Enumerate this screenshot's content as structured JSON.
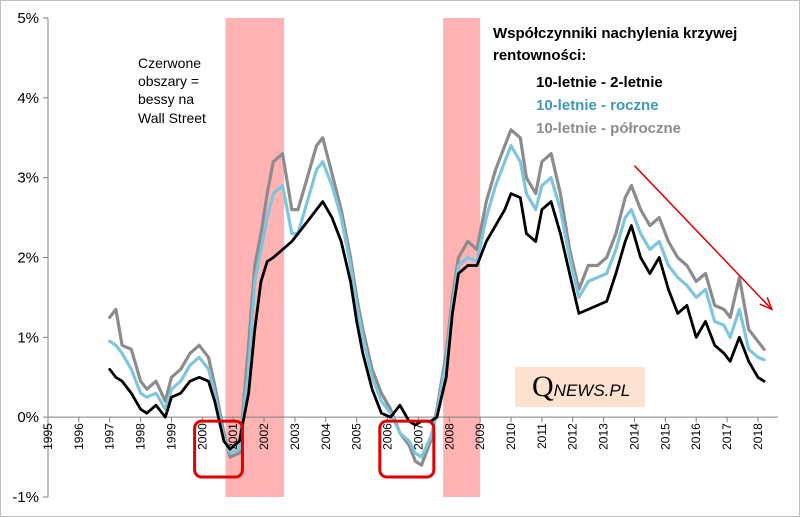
{
  "chart_data": {
    "type": "line",
    "title": "Współczynniki nachylenia krzywej rentowności:",
    "title_lines": [
      "Współczynniki nachylenia krzywej",
      "rentowności:"
    ],
    "xlabel": "",
    "ylabel": "",
    "xlim": [
      1995,
      2018.65
    ],
    "ylim": [
      -1,
      5
    ],
    "yticks": [
      -1,
      0,
      1,
      2,
      3,
      4,
      5
    ],
    "ytick_labels": [
      "-1%",
      "0%",
      "1%",
      "2%",
      "3%",
      "4%",
      "5%"
    ],
    "xticks": [
      1995,
      1996,
      1997,
      1998,
      1999,
      2000,
      2001,
      2002,
      2003,
      2004,
      2005,
      2006,
      2007,
      2008,
      2009,
      2010,
      2011,
      2012,
      2013,
      2014,
      2015,
      2016,
      2017,
      2018
    ],
    "xtick_labels": [
      "1995",
      "1996",
      "1997",
      "1998",
      "1999",
      "2000",
      "2001",
      "2002",
      "2003",
      "2004",
      "2005",
      "2006",
      "2007",
      "2008",
      "2009",
      "2010",
      "2011",
      "2012",
      "2013",
      "2014",
      "2015",
      "2016",
      "2017",
      "2018"
    ],
    "grid": false,
    "legend_position": "top-right",
    "series": [
      {
        "name": "10-letnie - półroczne",
        "color": "#8c8c8c",
        "x": [
          1997.0,
          1997.2,
          1997.4,
          1997.7,
          1998.0,
          1998.2,
          1998.5,
          1998.8,
          1999.0,
          1999.3,
          1999.6,
          1999.9,
          2000.2,
          2000.4,
          2000.7,
          2000.9,
          2001.2,
          2001.5,
          2001.7,
          2001.9,
          2002.1,
          2002.3,
          2002.6,
          2002.9,
          2003.1,
          2003.4,
          2003.7,
          2003.9,
          2004.2,
          2004.5,
          2004.8,
          2005.0,
          2005.2,
          2005.5,
          2005.8,
          2006.1,
          2006.4,
          2006.7,
          2006.9,
          2007.1,
          2007.4,
          2007.6,
          2007.9,
          2008.1,
          2008.3,
          2008.6,
          2008.9,
          2009.2,
          2009.5,
          2009.8,
          2010.0,
          2010.3,
          2010.5,
          2010.8,
          2011.0,
          2011.3,
          2011.6,
          2011.9,
          2012.2,
          2012.5,
          2012.8,
          2013.1,
          2013.4,
          2013.7,
          2013.9,
          2014.2,
          2014.5,
          2014.8,
          2015.1,
          2015.4,
          2015.7,
          2016.0,
          2016.3,
          2016.6,
          2016.9,
          2017.1,
          2017.4,
          2017.7,
          2018.0,
          2018.2
        ],
        "y": [
          1.25,
          1.35,
          0.9,
          0.85,
          0.45,
          0.35,
          0.45,
          0.2,
          0.5,
          0.6,
          0.8,
          0.9,
          0.75,
          0.4,
          -0.2,
          -0.5,
          -0.45,
          0.9,
          1.9,
          2.3,
          2.8,
          3.2,
          3.3,
          2.6,
          2.6,
          3.0,
          3.4,
          3.5,
          3.05,
          2.6,
          2.0,
          1.5,
          1.1,
          0.6,
          0.3,
          0.1,
          -0.2,
          -0.35,
          -0.55,
          -0.6,
          -0.3,
          0.1,
          0.8,
          1.5,
          2.0,
          2.2,
          2.1,
          2.7,
          3.1,
          3.4,
          3.6,
          3.5,
          3.0,
          2.8,
          3.2,
          3.3,
          2.8,
          2.1,
          1.6,
          1.9,
          1.9,
          2.0,
          2.3,
          2.75,
          2.9,
          2.6,
          2.4,
          2.5,
          2.2,
          2.0,
          1.9,
          1.7,
          1.8,
          1.4,
          1.35,
          1.25,
          1.75,
          1.1,
          0.95,
          0.85
        ]
      },
      {
        "name": "10-letnie - roczne",
        "color": "#7ec6dd",
        "x": [
          1997.0,
          1997.2,
          1997.4,
          1997.7,
          1998.0,
          1998.2,
          1998.5,
          1998.8,
          1999.0,
          1999.3,
          1999.6,
          1999.9,
          2000.2,
          2000.4,
          2000.7,
          2000.9,
          2001.2,
          2001.5,
          2001.7,
          2001.9,
          2002.1,
          2002.3,
          2002.6,
          2002.9,
          2003.1,
          2003.4,
          2003.7,
          2003.9,
          2004.2,
          2004.5,
          2004.8,
          2005.0,
          2005.2,
          2005.5,
          2005.8,
          2006.1,
          2006.4,
          2006.7,
          2006.9,
          2007.1,
          2007.4,
          2007.6,
          2007.9,
          2008.1,
          2008.3,
          2008.6,
          2008.9,
          2009.2,
          2009.5,
          2009.8,
          2010.0,
          2010.3,
          2010.5,
          2010.8,
          2011.0,
          2011.3,
          2011.6,
          2011.9,
          2012.2,
          2012.5,
          2012.8,
          2013.1,
          2013.4,
          2013.7,
          2013.9,
          2014.2,
          2014.5,
          2014.8,
          2015.1,
          2015.4,
          2015.7,
          2016.0,
          2016.3,
          2016.6,
          2016.9,
          2017.1,
          2017.4,
          2017.7,
          2018.0,
          2018.2
        ],
        "y": [
          0.95,
          0.9,
          0.8,
          0.6,
          0.3,
          0.25,
          0.3,
          0.1,
          0.35,
          0.45,
          0.65,
          0.75,
          0.6,
          0.3,
          -0.25,
          -0.45,
          -0.4,
          0.6,
          1.7,
          2.1,
          2.5,
          2.8,
          2.9,
          2.3,
          2.3,
          2.7,
          3.1,
          3.2,
          2.9,
          2.5,
          1.9,
          1.4,
          1.0,
          0.5,
          0.2,
          0.05,
          -0.2,
          -0.3,
          -0.45,
          -0.5,
          -0.25,
          0.05,
          0.7,
          1.4,
          1.9,
          2.0,
          1.95,
          2.5,
          2.9,
          3.2,
          3.4,
          3.2,
          2.8,
          2.6,
          2.9,
          3.0,
          2.6,
          2.0,
          1.5,
          1.7,
          1.75,
          1.8,
          2.1,
          2.5,
          2.6,
          2.3,
          2.1,
          2.2,
          1.9,
          1.75,
          1.65,
          1.5,
          1.6,
          1.2,
          1.15,
          1.0,
          1.35,
          0.85,
          0.75,
          0.72
        ]
      },
      {
        "name": "10-letnie - 2-letnie",
        "color": "#000000",
        "x": [
          1997.0,
          1997.2,
          1997.4,
          1997.7,
          1998.0,
          1998.2,
          1998.5,
          1998.8,
          1999.0,
          1999.3,
          1999.6,
          1999.9,
          2000.2,
          2000.4,
          2000.7,
          2000.9,
          2001.2,
          2001.5,
          2001.7,
          2001.9,
          2002.1,
          2002.3,
          2002.6,
          2002.9,
          2003.1,
          2003.4,
          2003.7,
          2003.9,
          2004.2,
          2004.5,
          2004.8,
          2005.0,
          2005.2,
          2005.5,
          2005.8,
          2006.1,
          2006.4,
          2006.7,
          2006.9,
          2007.1,
          2007.4,
          2007.6,
          2007.9,
          2008.1,
          2008.3,
          2008.6,
          2008.9,
          2009.2,
          2009.5,
          2009.8,
          2010.0,
          2010.3,
          2010.5,
          2010.8,
          2011.0,
          2011.3,
          2011.6,
          2011.9,
          2012.2,
          2012.5,
          2012.8,
          2013.1,
          2013.4,
          2013.7,
          2013.9,
          2014.2,
          2014.5,
          2014.8,
          2015.1,
          2015.4,
          2015.7,
          2016.0,
          2016.3,
          2016.6,
          2016.9,
          2017.1,
          2017.4,
          2017.7,
          2018.0,
          2018.2
        ],
        "y": [
          0.6,
          0.5,
          0.45,
          0.3,
          0.1,
          0.05,
          0.15,
          0.0,
          0.25,
          0.3,
          0.45,
          0.5,
          0.45,
          0.2,
          -0.3,
          -0.4,
          -0.3,
          0.3,
          1.1,
          1.7,
          1.95,
          2.0,
          2.1,
          2.2,
          2.3,
          2.45,
          2.6,
          2.7,
          2.5,
          2.2,
          1.7,
          1.2,
          0.8,
          0.35,
          0.05,
          0.0,
          0.15,
          -0.05,
          -0.1,
          -0.05,
          -0.05,
          0.0,
          0.5,
          1.3,
          1.8,
          1.9,
          1.9,
          2.2,
          2.4,
          2.6,
          2.8,
          2.75,
          2.3,
          2.2,
          2.6,
          2.7,
          2.3,
          1.8,
          1.3,
          1.35,
          1.4,
          1.45,
          1.8,
          2.2,
          2.4,
          2.0,
          1.8,
          2.0,
          1.6,
          1.3,
          1.4,
          1.0,
          1.2,
          0.9,
          0.8,
          0.7,
          1.0,
          0.7,
          0.5,
          0.45
        ]
      }
    ],
    "shaded_regions": [
      {
        "x0": 2000.75,
        "x1": 2002.65,
        "color": "#ffb3b3"
      },
      {
        "x0": 2007.8,
        "x1": 2009.0,
        "color": "#ffb3b3"
      }
    ],
    "highlight_boxes": [
      {
        "x0": 1999.75,
        "x1": 2001.3,
        "y0": -0.75,
        "y1": -0.05,
        "color": "#e00000"
      },
      {
        "x0": 2005.75,
        "x1": 2007.5,
        "y0": -0.75,
        "y1": -0.05,
        "color": "#e00000"
      }
    ],
    "annotations": {
      "note_lines": [
        "Czerwone",
        "obszary =",
        "bessy na",
        "Wall Street"
      ],
      "trend_arrow": {
        "x0": 2014.0,
        "y0": 3.15,
        "x1": 2018.45,
        "y1": 1.35,
        "color": "#e00000"
      }
    },
    "logo": {
      "text_q": "Q",
      "text_rest": "NEWS.PL",
      "background": "#fde3cf"
    }
  }
}
